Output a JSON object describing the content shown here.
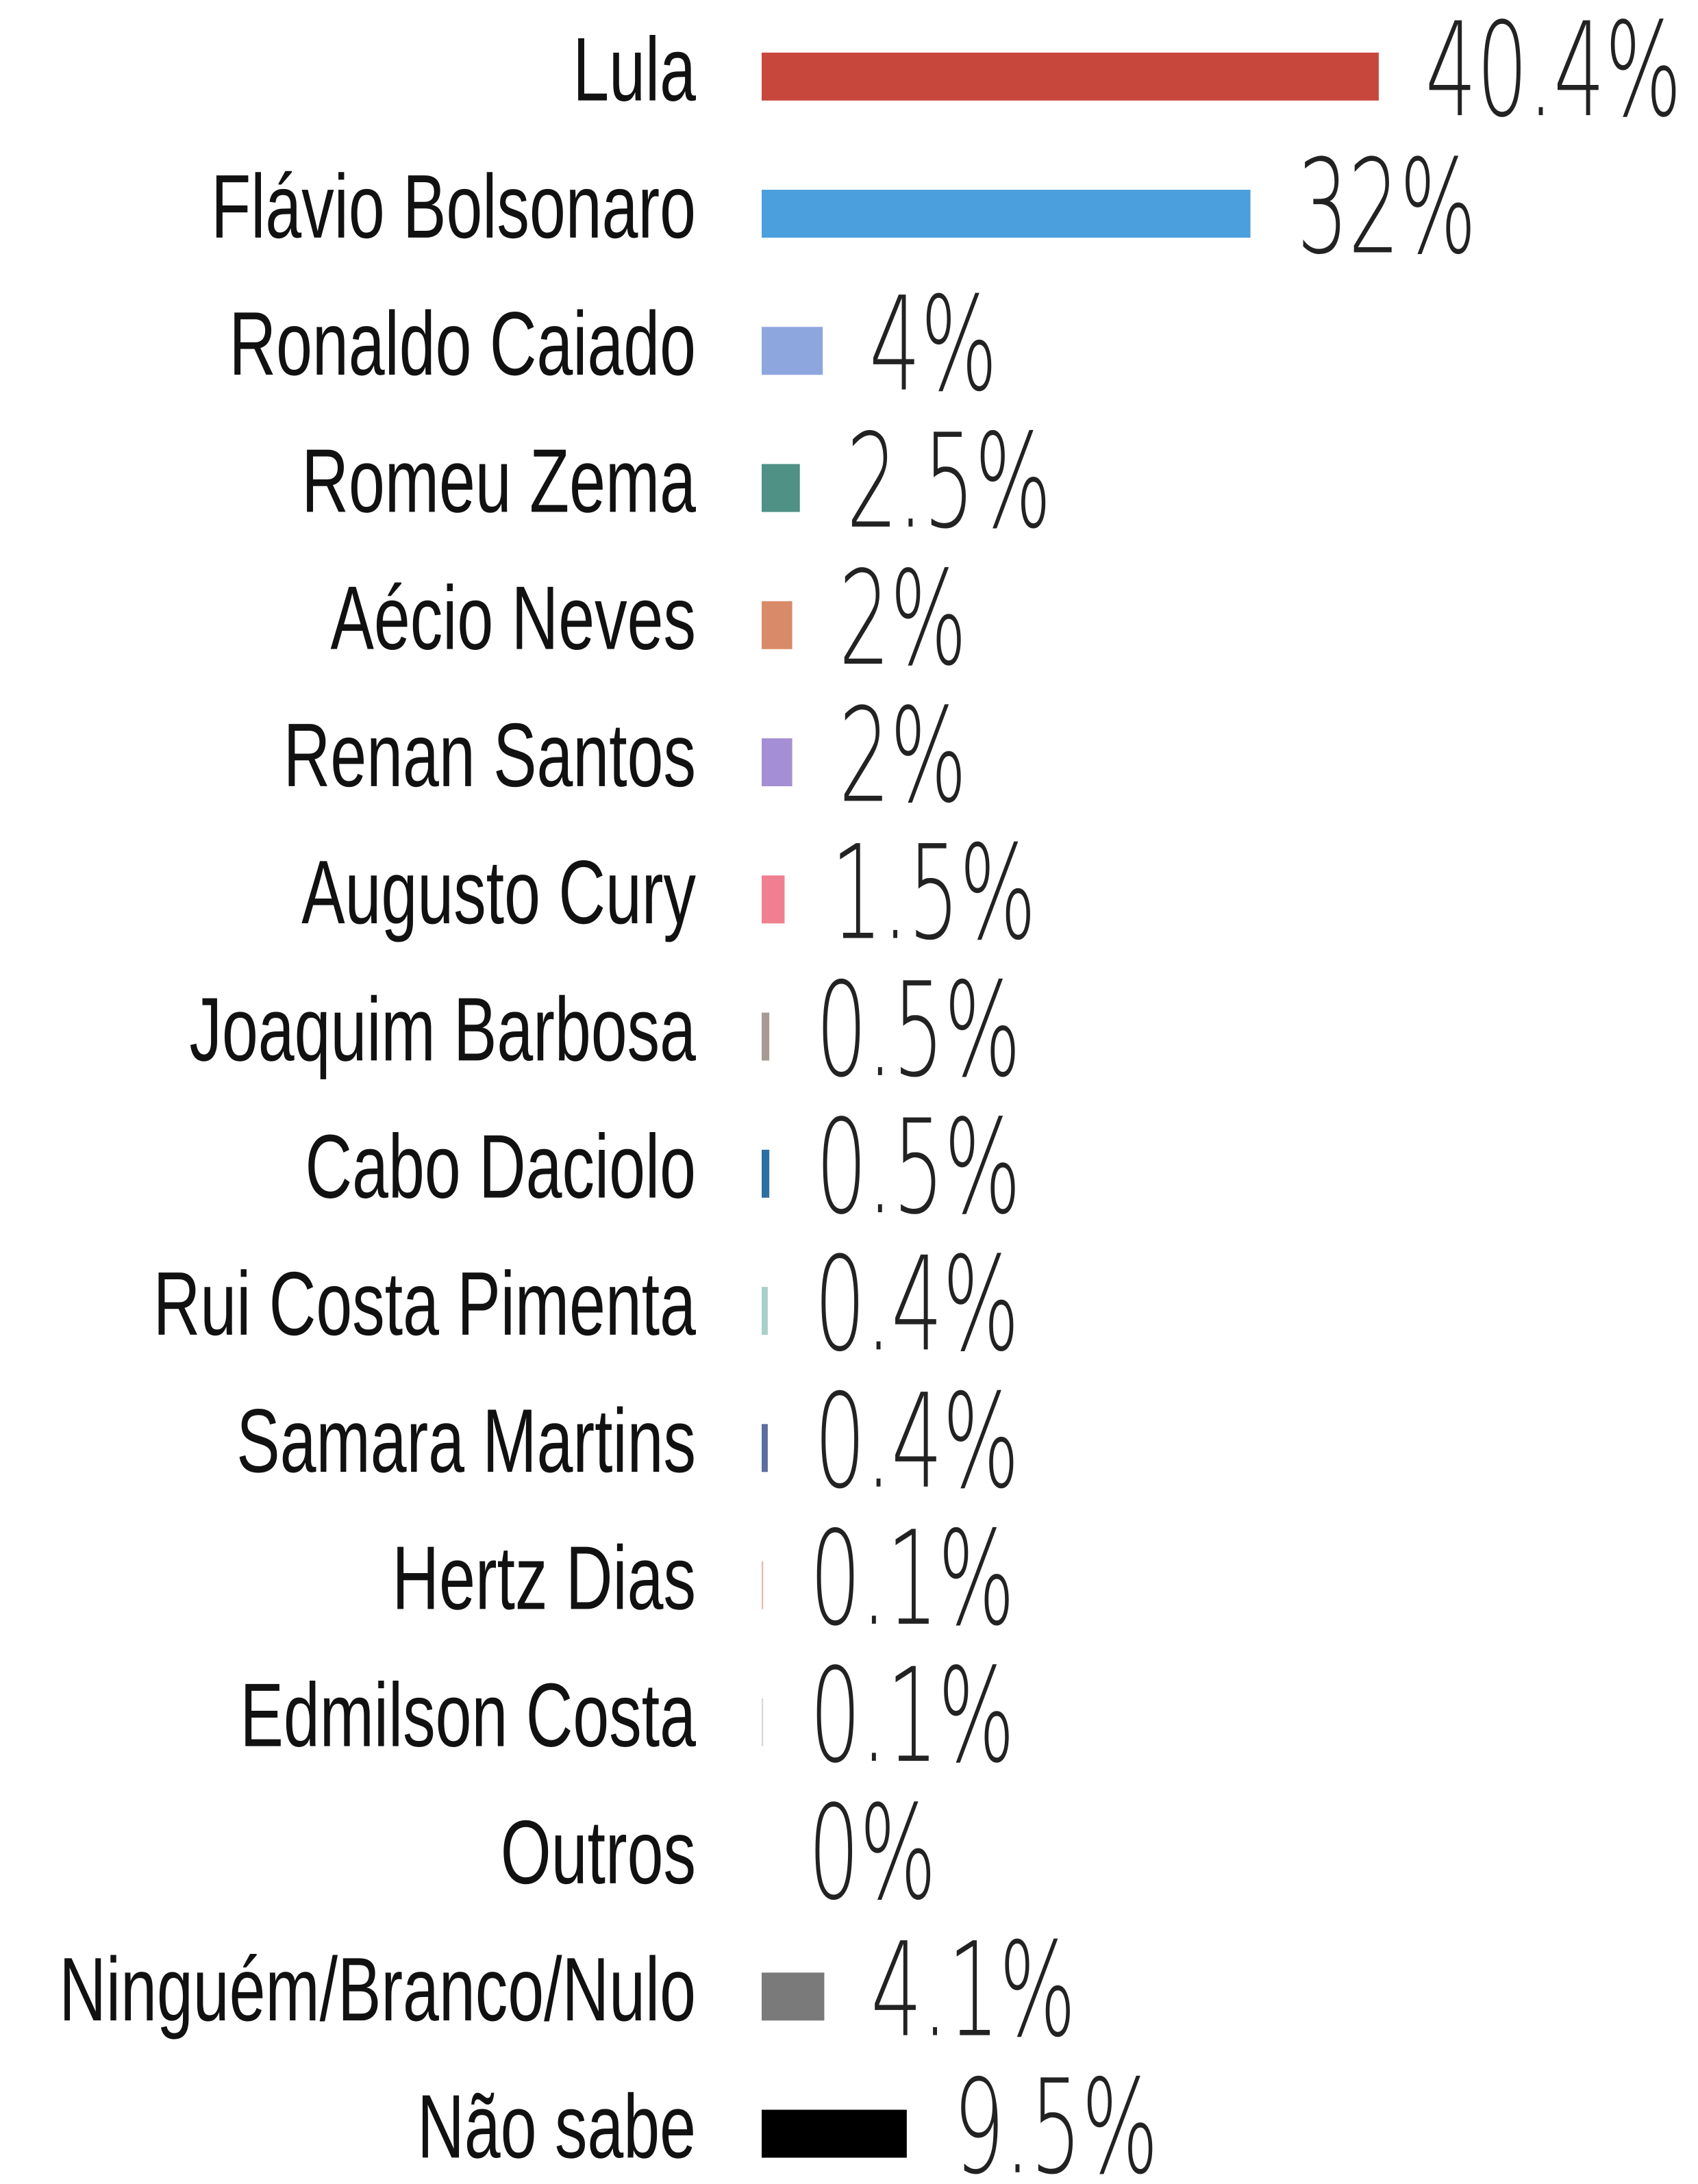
{
  "chart_data": {
    "type": "bar",
    "categories": [
      "Lula",
      "Flávio Bolsonaro",
      "Ronaldo Caiado",
      "Romeu Zema",
      "Aécio Neves",
      "Renan Santos",
      "Augusto Cury",
      "Joaquim Barbosa",
      "Cabo Daciolo",
      "Rui Costa Pimenta",
      "Samara Martins",
      "Hertz Dias",
      "Edmilson Costa",
      "Outros",
      "Ninguém/Branco/Nulo",
      "Não sabe"
    ],
    "values": [
      40.4,
      32,
      4,
      2.5,
      2,
      2,
      1.5,
      0.5,
      0.5,
      0.4,
      0.4,
      0.1,
      0.1,
      0,
      4.1,
      9.5
    ],
    "value_labels": [
      "40.4%",
      "32%",
      "4%",
      "2.5%",
      "2%",
      "2%",
      "1.5%",
      "0.5%",
      "0.5%",
      "0.4%",
      "0.4%",
      "0.1%",
      "0.1%",
      "0%",
      "4.1%",
      "9.5%"
    ],
    "colors": [
      "#c8473d",
      "#4a9fdc",
      "#8ea6de",
      "#4f9184",
      "#d98a69",
      "#a58fd4",
      "#f0808f",
      "#a89a94",
      "#2b6fa3",
      "#a8d0c8",
      "#5c6ea0",
      "#e9b8b0",
      "#d8d8d8",
      "#cccccc",
      "#7a7a7a",
      "#000000"
    ]
  }
}
